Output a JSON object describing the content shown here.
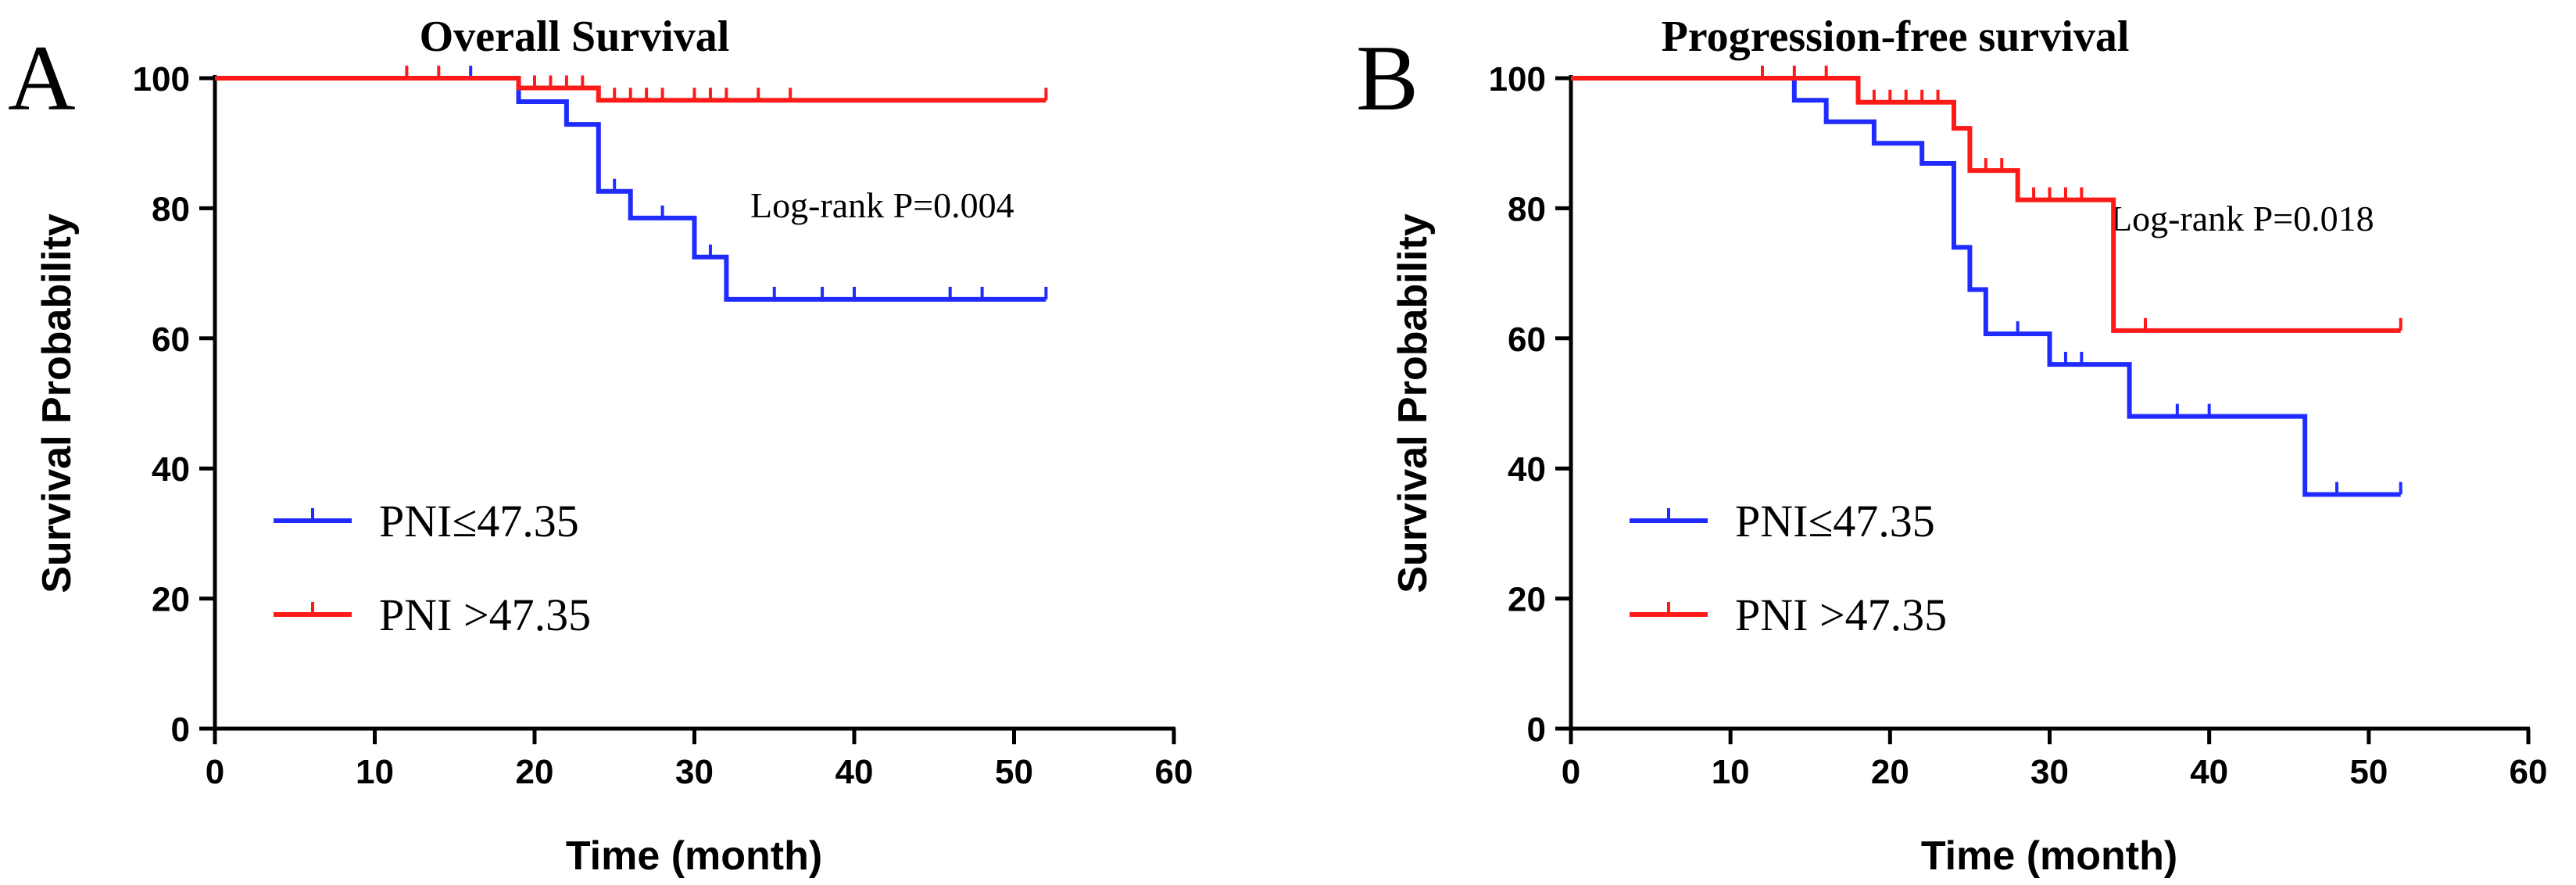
{
  "chart_data": [
    {
      "type": "line",
      "panel": "A",
      "title": "Overall Survival",
      "xlabel": "Time (month)",
      "ylabel": "Survival Probability",
      "xlim": [
        0,
        60
      ],
      "ylim": [
        0,
        100
      ],
      "xticks": [
        0,
        10,
        20,
        30,
        40,
        50,
        60
      ],
      "yticks": [
        0,
        20,
        40,
        60,
        80,
        100
      ],
      "annotation": "Log-rank P=0.004",
      "legend_position": "bottom-left",
      "series": [
        {
          "name": "PNI≤47.35",
          "color": "#1f2bff",
          "steps": [
            [
              0,
              100
            ],
            [
              19,
              96.4
            ],
            [
              22,
              92.9
            ],
            [
              24,
              82.6
            ],
            [
              26,
              78.5
            ],
            [
              30,
              72.5
            ],
            [
              32,
              66
            ]
          ],
          "end_x": 52,
          "censors": [
            [
              16,
              100
            ],
            [
              25,
              82.6
            ],
            [
              28,
              78.5
            ],
            [
              31,
              72.5
            ],
            [
              35,
              66
            ],
            [
              38,
              66
            ],
            [
              40,
              66
            ],
            [
              46,
              66
            ],
            [
              48,
              66
            ],
            [
              52,
              66
            ]
          ]
        },
        {
          "name": "PNI >47.35",
          "color": "#ff1a1a",
          "steps": [
            [
              0,
              100
            ],
            [
              19,
              98.5
            ],
            [
              24,
              96.6
            ]
          ],
          "end_x": 52,
          "censors": [
            [
              12,
              100
            ],
            [
              14,
              100
            ],
            [
              20,
              98.5
            ],
            [
              21,
              98.5
            ],
            [
              22,
              98.5
            ],
            [
              23,
              98.5
            ],
            [
              25,
              96.6
            ],
            [
              26,
              96.6
            ],
            [
              27,
              96.6
            ],
            [
              28,
              96.6
            ],
            [
              30,
              96.6
            ],
            [
              31,
              96.6
            ],
            [
              32,
              96.6
            ],
            [
              34,
              96.6
            ],
            [
              36,
              96.6
            ],
            [
              52,
              96.6
            ]
          ]
        }
      ]
    },
    {
      "type": "line",
      "panel": "B",
      "title": "Progression-free survival",
      "xlabel": "Time (month)",
      "ylabel": "Survival Probability",
      "xlim": [
        0,
        60
      ],
      "ylim": [
        0,
        100
      ],
      "xticks": [
        0,
        10,
        20,
        30,
        40,
        50,
        60
      ],
      "yticks": [
        0,
        20,
        40,
        60,
        80,
        100
      ],
      "annotation": "Log-rank P=0.018",
      "legend_position": "bottom-left",
      "series": [
        {
          "name": "PNI≤47.35",
          "color": "#1f2bff",
          "steps": [
            [
              0,
              100
            ],
            [
              14,
              96.6
            ],
            [
              16,
              93.3
            ],
            [
              19,
              90
            ],
            [
              22,
              86.9
            ],
            [
              24,
              74
            ],
            [
              25,
              67.5
            ],
            [
              26,
              60.7
            ],
            [
              30,
              56
            ],
            [
              35,
              48
            ],
            [
              46,
              36
            ]
          ],
          "end_x": 52,
          "censors": [
            [
              28,
              60.7
            ],
            [
              31,
              56
            ],
            [
              32,
              56
            ],
            [
              38,
              48
            ],
            [
              40,
              48
            ],
            [
              48,
              36
            ],
            [
              52,
              36
            ]
          ]
        },
        {
          "name": "PNI >47.35",
          "color": "#ff1a1a",
          "steps": [
            [
              0,
              100
            ],
            [
              18,
              96.3
            ],
            [
              24,
              92.3
            ],
            [
              25,
              85.8
            ],
            [
              28,
              81.3
            ],
            [
              34,
              61.2
            ]
          ],
          "end_x": 52,
          "censors": [
            [
              12,
              100
            ],
            [
              14,
              100
            ],
            [
              16,
              100
            ],
            [
              19,
              96.3
            ],
            [
              20,
              96.3
            ],
            [
              21,
              96.3
            ],
            [
              22,
              96.3
            ],
            [
              23,
              96.3
            ],
            [
              26,
              85.8
            ],
            [
              27,
              85.8
            ],
            [
              29,
              81.3
            ],
            [
              30,
              81.3
            ],
            [
              31,
              81.3
            ],
            [
              32,
              81.3
            ],
            [
              36,
              61.2
            ],
            [
              52,
              61.2
            ]
          ]
        }
      ]
    }
  ]
}
